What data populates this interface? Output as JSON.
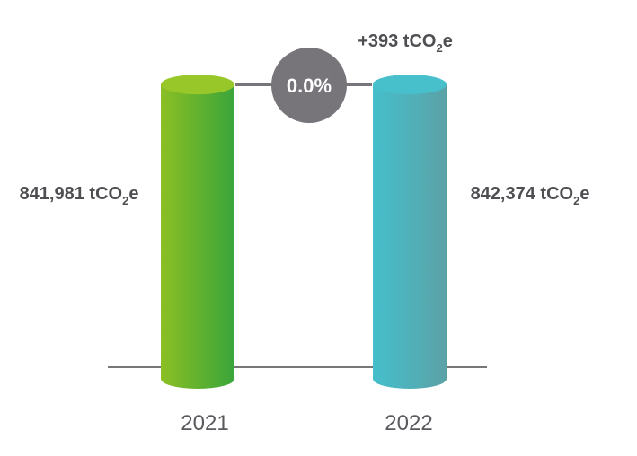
{
  "chart_data": {
    "type": "bar",
    "categories": [
      "2021",
      "2022"
    ],
    "values": [
      841981,
      842374
    ],
    "unit": "tCO2e",
    "value_labels": [
      {
        "main": "841,981 tCO",
        "sub": "2",
        "tail": "e"
      },
      {
        "main": "842,374 tCO",
        "sub": "2",
        "tail": "e"
      }
    ],
    "change_label": {
      "main": "+393 tCO",
      "sub": "2",
      "tail": "e"
    },
    "change_percent": "0.0%",
    "colors": {
      "bar_2021_light": "#8cbf24",
      "bar_2021_dark": "#3aa53a",
      "bar_2021_top": "#98c72a",
      "bar_2022_light": "#45bfcb",
      "bar_2022_dark": "#5ba2a7",
      "bar_2022_top": "#47c0cc",
      "circle": "#77747a",
      "line": "#77747a",
      "text": "#4f4f53"
    },
    "grid": false,
    "legend": "none"
  }
}
